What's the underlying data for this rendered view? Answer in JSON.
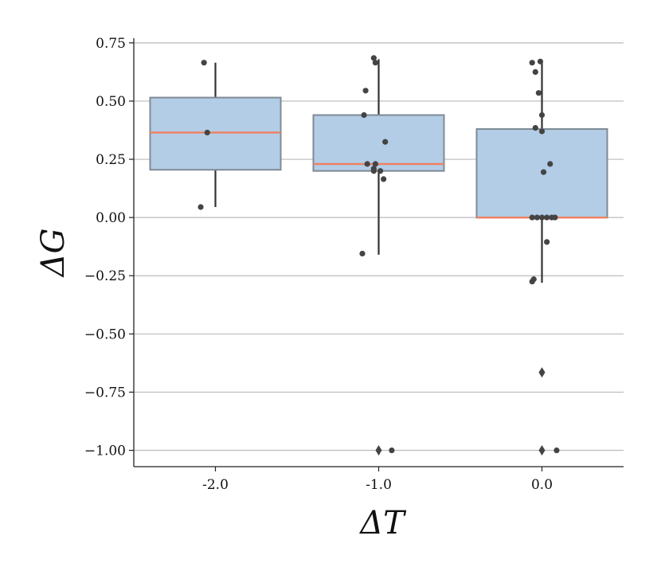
{
  "chart_data": {
    "type": "box",
    "xlabel": "ΔT",
    "ylabel": "ΔG",
    "categories": [
      "-2.0",
      "-1.0",
      "0.0"
    ],
    "ylim": [
      -1.07,
      0.77
    ],
    "yticks": [
      0.75,
      0.5,
      0.25,
      0.0,
      -0.25,
      -0.5,
      -0.75,
      -1.0
    ],
    "ytick_labels": [
      "0.75",
      "0.50",
      "0.25",
      "0.00",
      "−0.25",
      "−0.50",
      "−0.75",
      "−1.00"
    ],
    "grid": "horizontal",
    "colors": {
      "box_fill": "#b3cde6",
      "box_edge": "#7f8a96",
      "median": "#f08060",
      "whisker": "#333333",
      "point": "#444444",
      "grid": "#bbbbbb"
    },
    "boxes": [
      {
        "category": "-2.0",
        "q1": 0.205,
        "median": 0.365,
        "q3": 0.515,
        "whisker_low": 0.045,
        "whisker_high": 0.665,
        "fliers": []
      },
      {
        "category": "-1.0",
        "q1": 0.2,
        "median": 0.23,
        "q3": 0.44,
        "whisker_low": -0.16,
        "whisker_high": 0.68,
        "fliers": [
          -1.0
        ]
      },
      {
        "category": "0.0",
        "q1": 0.0,
        "median": 0.0,
        "q3": 0.38,
        "whisker_low": -0.28,
        "whisker_high": 0.67,
        "fliers": [
          -0.665,
          -1.0
        ]
      }
    ],
    "points": [
      {
        "category": "-2.0",
        "x": -2.07,
        "y": 0.665
      },
      {
        "category": "-2.0",
        "x": -2.05,
        "y": 0.365
      },
      {
        "category": "-2.0",
        "x": -2.09,
        "y": 0.045
      },
      {
        "category": "-1.0",
        "x": -1.03,
        "y": 0.685
      },
      {
        "category": "-1.0",
        "x": -1.02,
        "y": 0.665
      },
      {
        "category": "-1.0",
        "x": -1.08,
        "y": 0.545
      },
      {
        "category": "-1.0",
        "x": -1.09,
        "y": 0.44
      },
      {
        "category": "-1.0",
        "x": -0.96,
        "y": 0.325
      },
      {
        "category": "-1.0",
        "x": -1.07,
        "y": 0.23
      },
      {
        "category": "-1.0",
        "x": -1.02,
        "y": 0.23
      },
      {
        "category": "-1.0",
        "x": -1.03,
        "y": 0.21
      },
      {
        "category": "-1.0",
        "x": -0.99,
        "y": 0.2
      },
      {
        "category": "-1.0",
        "x": -1.03,
        "y": 0.2
      },
      {
        "category": "-1.0",
        "x": -0.97,
        "y": 0.165
      },
      {
        "category": "-1.0",
        "x": -1.1,
        "y": -0.155
      },
      {
        "category": "-1.0",
        "x": -0.92,
        "y": -1.0
      },
      {
        "category": "0.0",
        "x": -0.06,
        "y": 0.665
      },
      {
        "category": "0.0",
        "x": -0.01,
        "y": 0.67
      },
      {
        "category": "0.0",
        "x": -0.04,
        "y": 0.625
      },
      {
        "category": "0.0",
        "x": -0.02,
        "y": 0.535
      },
      {
        "category": "0.0",
        "x": 0.0,
        "y": 0.44
      },
      {
        "category": "0.0",
        "x": -0.04,
        "y": 0.385
      },
      {
        "category": "0.0",
        "x": 0.0,
        "y": 0.37
      },
      {
        "category": "0.0",
        "x": 0.05,
        "y": 0.23
      },
      {
        "category": "0.0",
        "x": 0.01,
        "y": 0.195
      },
      {
        "category": "0.0",
        "x": -0.06,
        "y": 0.0
      },
      {
        "category": "0.0",
        "x": -0.03,
        "y": 0.0
      },
      {
        "category": "0.0",
        "x": 0.0,
        "y": 0.0
      },
      {
        "category": "0.0",
        "x": 0.03,
        "y": 0.0
      },
      {
        "category": "0.0",
        "x": 0.06,
        "y": 0.0
      },
      {
        "category": "0.0",
        "x": 0.08,
        "y": 0.0
      },
      {
        "category": "0.0",
        "x": 0.03,
        "y": -0.105
      },
      {
        "category": "0.0",
        "x": -0.05,
        "y": -0.265
      },
      {
        "category": "0.0",
        "x": -0.06,
        "y": -0.275
      },
      {
        "category": "0.0",
        "x": 0.09,
        "y": -1.0
      }
    ]
  }
}
